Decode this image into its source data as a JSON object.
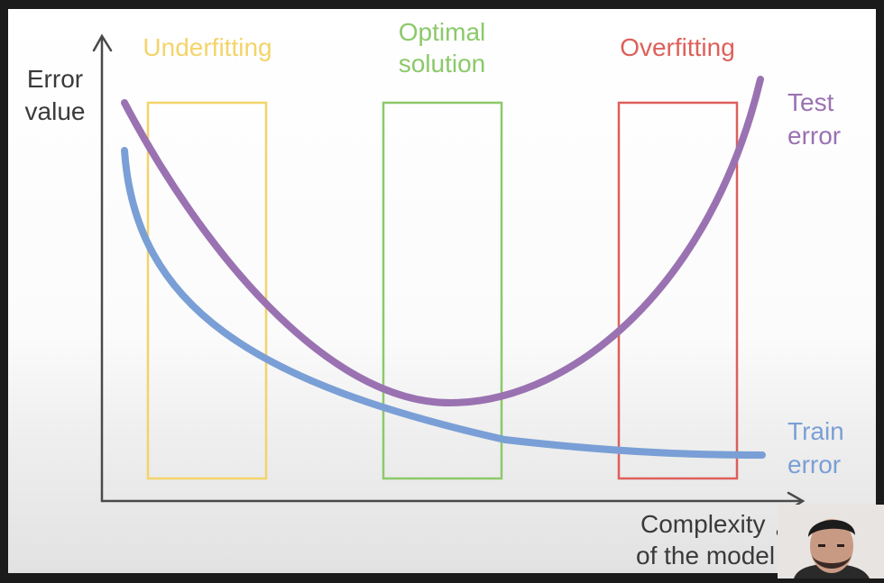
{
  "labels": {
    "y_axis": [
      "Error",
      "value"
    ],
    "x_axis": [
      "Complexity",
      "of the model"
    ],
    "zones": {
      "underfitting": [
        "Underfitting"
      ],
      "optimal": [
        "Optimal",
        "solution"
      ],
      "overfitting": [
        "Overfitting"
      ]
    },
    "series": {
      "test": [
        "Test",
        "error"
      ],
      "train": [
        "Train",
        "error"
      ]
    }
  },
  "colors": {
    "underfitting": "#f3d46a",
    "optimal": "#8cc96a",
    "overfitting": "#dd5f5a",
    "test_curve": "#9a72b2",
    "train_curve": "#7a9fd6",
    "axis": "#4a4a4a",
    "text": "#3a3a3a"
  },
  "icons": {
    "cursor": "magnifier-cursor-icon",
    "presenter": "presenter-webcam"
  }
}
